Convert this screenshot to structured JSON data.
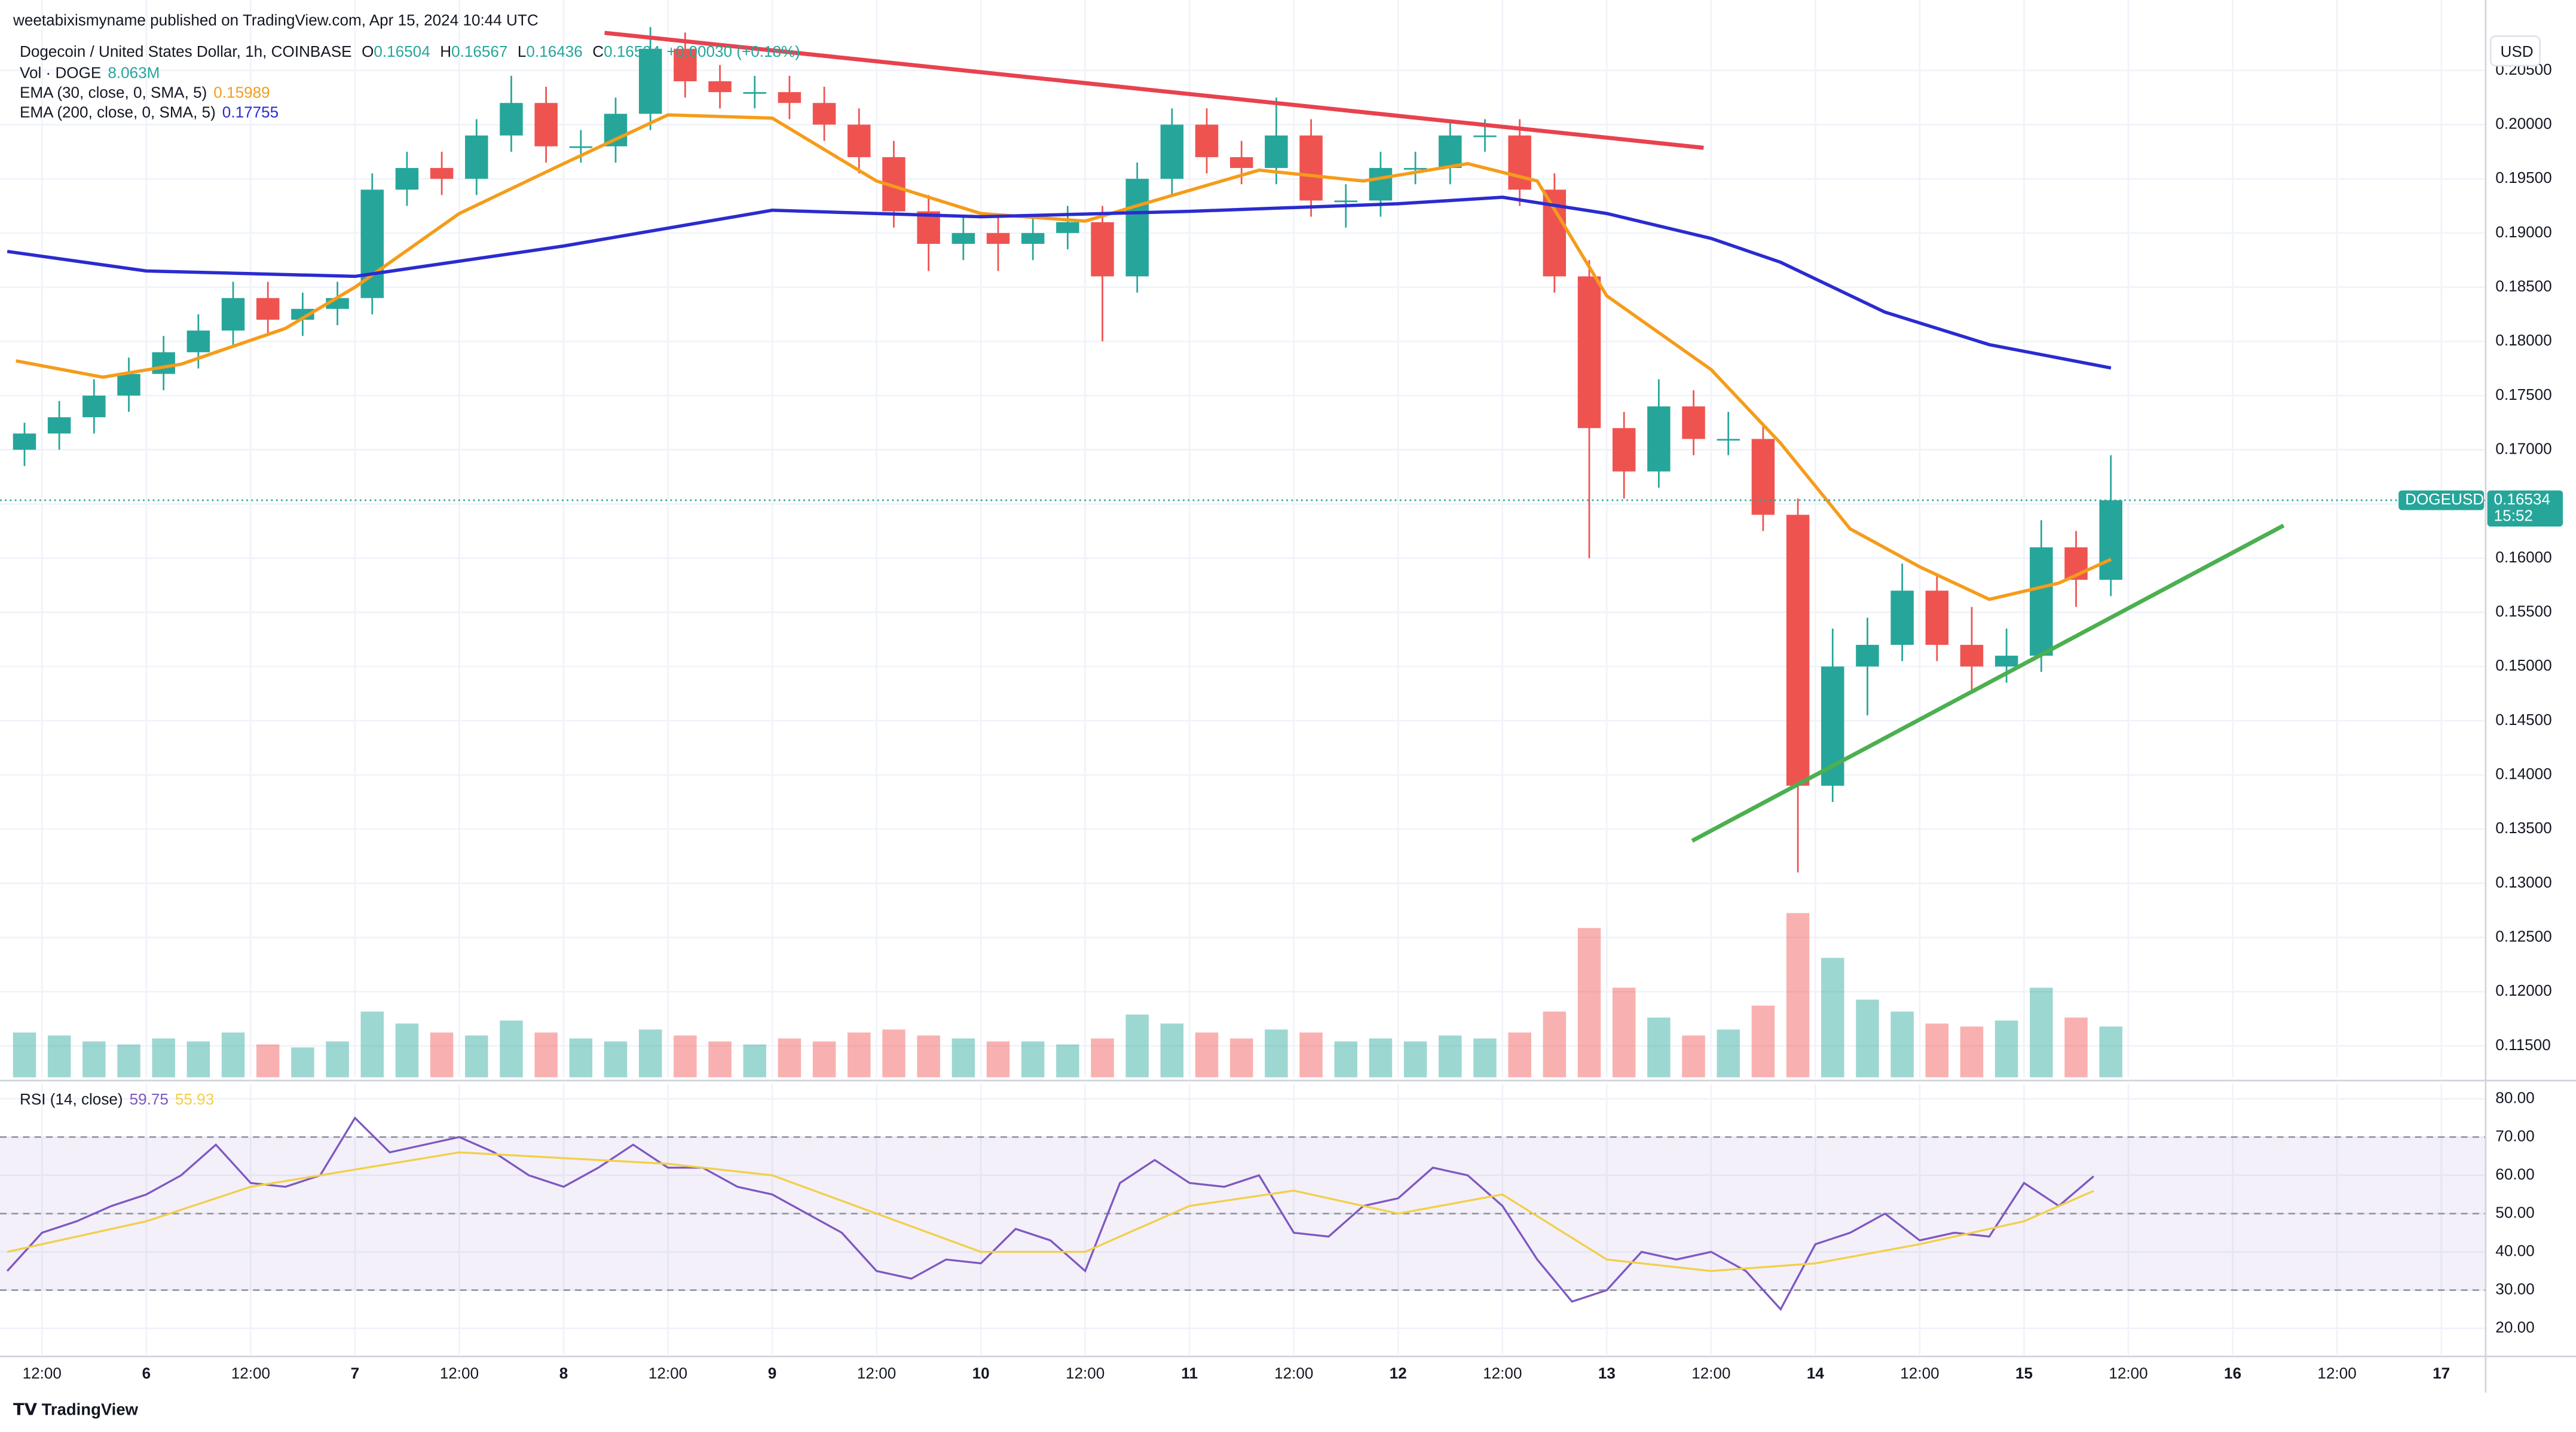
{
  "header": "weetabixismyname published on TradingView.com, Apr 15, 2024 10:44 UTC",
  "footer": "TradingView",
  "chart_data": [
    {
      "type": "candlestick",
      "title": "Dogecoin / United States Dollar, 1h, COINBASE",
      "ohlc": [
        {
          "label": "O",
          "value": 0.16504
        },
        {
          "label": "H",
          "value": 0.16567
        },
        {
          "label": "L",
          "value": 0.16436
        },
        {
          "label": "C",
          "value": 0.16534
        }
      ],
      "change": "+0.00030 (+0.18%)",
      "volume_title": "Vol · DOGE",
      "volume_last": "8.063M",
      "x": [
        "Apr 5 08:00",
        "Apr 5 12:00",
        "Apr 5 16:00",
        "Apr 5 20:00",
        "Apr 6 00:00",
        "Apr 6 04:00",
        "Apr 6 08:00",
        "Apr 6 12:00",
        "Apr 6 16:00",
        "Apr 6 20:00",
        "Apr 7 00:00",
        "Apr 7 04:00",
        "Apr 7 08:00",
        "Apr 7 12:00",
        "Apr 7 16:00",
        "Apr 7 20:00",
        "Apr 8 00:00",
        "Apr 8 04:00",
        "Apr 8 08:00",
        "Apr 8 12:00",
        "Apr 8 16:00",
        "Apr 8 20:00",
        "Apr 9 00:00",
        "Apr 9 04:00",
        "Apr 9 08:00",
        "Apr 9 12:00",
        "Apr 9 16:00",
        "Apr 9 20:00",
        "Apr 10 00:00",
        "Apr 10 04:00",
        "Apr 10 08:00",
        "Apr 10 12:00",
        "Apr 10 16:00",
        "Apr 10 20:00",
        "Apr 11 00:00",
        "Apr 11 04:00",
        "Apr 11 08:00",
        "Apr 11 12:00",
        "Apr 11 16:00",
        "Apr 11 20:00",
        "Apr 12 00:00",
        "Apr 12 04:00",
        "Apr 12 08:00",
        "Apr 12 12:00",
        "Apr 12 16:00",
        "Apr 12 20:00",
        "Apr 13 00:00",
        "Apr 13 04:00",
        "Apr 13 08:00",
        "Apr 13 12:00",
        "Apr 13 16:00",
        "Apr 13 20:00",
        "Apr 14 00:00",
        "Apr 14 04:00",
        "Apr 14 08:00",
        "Apr 14 12:00",
        "Apr 14 16:00",
        "Apr 14 20:00",
        "Apr 15 00:00",
        "Apr 15 04:00",
        "Apr 15 08:00"
      ],
      "open": [
        0.17,
        0.1715,
        0.173,
        0.175,
        0.177,
        0.179,
        0.181,
        0.184,
        0.182,
        0.183,
        0.184,
        0.194,
        0.196,
        0.195,
        0.199,
        0.202,
        0.198,
        0.198,
        0.201,
        0.207,
        0.204,
        0.203,
        0.203,
        0.202,
        0.2,
        0.197,
        0.192,
        0.189,
        0.19,
        0.189,
        0.19,
        0.191,
        0.186,
        0.195,
        0.2,
        0.197,
        0.196,
        0.199,
        0.193,
        0.193,
        0.196,
        0.196,
        0.199,
        0.199,
        0.194,
        0.186,
        0.172,
        0.168,
        0.174,
        0.171,
        0.171,
        0.164,
        0.139,
        0.15,
        0.152,
        0.157,
        0.152,
        0.15,
        0.151,
        0.161,
        0.158
      ],
      "high": [
        0.1725,
        0.1745,
        0.1765,
        0.1785,
        0.1805,
        0.1825,
        0.1855,
        0.1855,
        0.1845,
        0.1855,
        0.1955,
        0.1975,
        0.1975,
        0.2005,
        0.2045,
        0.2035,
        0.1995,
        0.2025,
        0.209,
        0.2085,
        0.2055,
        0.2045,
        0.2045,
        0.2035,
        0.2015,
        0.1985,
        0.1935,
        0.1915,
        0.1915,
        0.1915,
        0.1925,
        0.1925,
        0.1965,
        0.2015,
        0.2015,
        0.1985,
        0.2025,
        0.2005,
        0.1945,
        0.1975,
        0.1975,
        0.2005,
        0.2005,
        0.2005,
        0.1955,
        0.1875,
        0.1735,
        0.1765,
        0.1755,
        0.1735,
        0.1725,
        0.1655,
        0.1535,
        0.1545,
        0.1595,
        0.1585,
        0.1555,
        0.1535,
        0.1635,
        0.1625,
        0.1695
      ],
      "low": [
        0.1685,
        0.17,
        0.1715,
        0.1735,
        0.1755,
        0.1775,
        0.1795,
        0.1805,
        0.1805,
        0.1815,
        0.1825,
        0.1925,
        0.1935,
        0.1935,
        0.1975,
        0.1965,
        0.1965,
        0.1965,
        0.1995,
        0.2025,
        0.2015,
        0.2015,
        0.2005,
        0.1985,
        0.1955,
        0.1905,
        0.1865,
        0.1875,
        0.1865,
        0.1875,
        0.1885,
        0.18,
        0.1845,
        0.1935,
        0.1955,
        0.1945,
        0.1945,
        0.1915,
        0.1905,
        0.1915,
        0.1945,
        0.1945,
        0.1975,
        0.1925,
        0.1845,
        0.16,
        0.1655,
        0.1665,
        0.1695,
        0.1695,
        0.1625,
        0.131,
        0.1375,
        0.1455,
        0.1505,
        0.1505,
        0.1475,
        0.1485,
        0.1495,
        0.1555,
        0.1565
      ],
      "close": [
        0.1715,
        0.173,
        0.175,
        0.177,
        0.179,
        0.181,
        0.184,
        0.182,
        0.183,
        0.184,
        0.194,
        0.196,
        0.195,
        0.199,
        0.202,
        0.198,
        0.198,
        0.201,
        0.207,
        0.204,
        0.203,
        0.203,
        0.202,
        0.2,
        0.197,
        0.192,
        0.189,
        0.19,
        0.189,
        0.19,
        0.191,
        0.186,
        0.195,
        0.2,
        0.197,
        0.196,
        0.199,
        0.193,
        0.193,
        0.196,
        0.196,
        0.199,
        0.199,
        0.194,
        0.186,
        0.172,
        0.168,
        0.174,
        0.171,
        0.171,
        0.164,
        0.139,
        0.15,
        0.152,
        0.157,
        0.152,
        0.15,
        0.151,
        0.161,
        0.158,
        0.16534
      ],
      "volume": [
        150,
        140,
        120,
        110,
        130,
        120,
        150,
        110,
        100,
        120,
        220,
        180,
        150,
        140,
        190,
        150,
        130,
        120,
        160,
        140,
        120,
        110,
        130,
        120,
        150,
        160,
        140,
        130,
        120,
        120,
        110,
        130,
        210,
        180,
        150,
        130,
        160,
        150,
        120,
        130,
        120,
        140,
        130,
        150,
        220,
        500,
        300,
        200,
        140,
        160,
        240,
        550,
        400,
        260,
        220,
        180,
        170,
        190,
        300,
        200,
        170
      ],
      "up_color": "#26a69a",
      "down_color": "#ef5350",
      "series": [
        {
          "name": "EMA (30, close, 0, SMA, 5)",
          "color": "#f59c1a",
          "x": [
            "Apr 5 09:00",
            "Apr 5 19:00",
            "Apr 6 04:00",
            "Apr 6 16:00",
            "Apr 7 00:00",
            "Apr 7 12:00",
            "Apr 8 00:00",
            "Apr 8 12:00",
            "Apr 9 00:00",
            "Apr 9 12:00",
            "Apr 10 00:00",
            "Apr 10 12:00",
            "Apr 10 20:00",
            "Apr 11 08:00",
            "Apr 11 20:00",
            "Apr 12 08:00",
            "Apr 12 16:00",
            "Apr 13 00:00",
            "Apr 13 12:00",
            "Apr 13 20:00",
            "Apr 14 04:00",
            "Apr 14 12:00",
            "Apr 14 20:00",
            "Apr 15 04:00",
            "Apr 15 10:00"
          ],
          "values": [
            0.1782,
            0.1767,
            0.1779,
            0.1812,
            0.185,
            0.1918,
            0.1964,
            0.2009,
            0.2006,
            0.1948,
            0.1918,
            0.1911,
            0.193,
            0.1958,
            0.1948,
            0.1964,
            0.1948,
            0.1842,
            0.1774,
            0.1706,
            0.1627,
            0.1592,
            0.1562,
            0.1577,
            0.15989
          ]
        },
        {
          "name": "EMA (200, close, 0, SMA, 5)",
          "color": "#2b2bd0",
          "x": [
            "Apr 5 08:00",
            "Apr 6 00:00",
            "Apr 7 00:00",
            "Apr 8 00:00",
            "Apr 9 00:00",
            "Apr 10 00:00",
            "Apr 11 00:00",
            "Apr 12 00:00",
            "Apr 12 12:00",
            "Apr 13 00:00",
            "Apr 13 12:00",
            "Apr 13 20:00",
            "Apr 14 08:00",
            "Apr 14 20:00",
            "Apr 15 10:00"
          ],
          "values": [
            0.1883,
            0.1865,
            0.186,
            0.1888,
            0.1921,
            0.1915,
            0.192,
            0.1927,
            0.1933,
            0.1918,
            0.1895,
            0.1873,
            0.1827,
            0.1797,
            0.17755
          ]
        }
      ],
      "xlim": [
        "Apr 5 07:10",
        "Apr 17 05:06"
      ],
      "ylim": [
        0.1121,
        0.2115
      ],
      "yticks": [
        {
          "value": 0.115,
          "label": "0.11500"
        },
        {
          "value": 0.12,
          "label": "0.12000"
        },
        {
          "value": 0.125,
          "label": "0.12500"
        },
        {
          "value": 0.13,
          "label": "0.13000"
        },
        {
          "value": 0.135,
          "label": "0.13500"
        },
        {
          "value": 0.14,
          "label": "0.14000"
        },
        {
          "value": 0.145,
          "label": "0.14500"
        },
        {
          "value": 0.15,
          "label": "0.15000"
        },
        {
          "value": 0.155,
          "label": "0.15500"
        },
        {
          "value": 0.16,
          "label": "0.16000"
        },
        {
          "value": 0.165,
          "label": "0.16500"
        },
        {
          "value": 0.17,
          "label": "0.17000"
        },
        {
          "value": 0.175,
          "label": "0.17500"
        },
        {
          "value": 0.18,
          "label": "0.18000"
        },
        {
          "value": 0.185,
          "label": "0.18500"
        },
        {
          "value": 0.19,
          "label": "0.19000"
        },
        {
          "value": 0.195,
          "label": "0.19500"
        },
        {
          "value": 0.2,
          "label": "0.20000"
        },
        {
          "value": 0.205,
          "label": "0.20500"
        }
      ],
      "currency": "USD",
      "last_price": {
        "symbol": "DOGEUSD",
        "countdown": "15:52",
        "color": "#26a69a"
      },
      "grid": true
    },
    {
      "type": "line",
      "title": "RSI (14, close)",
      "x": [
        "Apr 5 08:00",
        "Apr 5 12:00",
        "Apr 5 16:00",
        "Apr 5 20:00",
        "Apr 6 00:00",
        "Apr 6 04:00",
        "Apr 6 08:00",
        "Apr 6 12:00",
        "Apr 6 16:00",
        "Apr 6 20:00",
        "Apr 7 00:00",
        "Apr 7 04:00",
        "Apr 7 08:00",
        "Apr 7 12:00",
        "Apr 7 16:00",
        "Apr 7 20:00",
        "Apr 8 00:00",
        "Apr 8 04:00",
        "Apr 8 08:00",
        "Apr 8 12:00",
        "Apr 8 16:00",
        "Apr 8 20:00",
        "Apr 9 00:00",
        "Apr 9 04:00",
        "Apr 9 08:00",
        "Apr 9 12:00",
        "Apr 9 16:00",
        "Apr 9 20:00",
        "Apr 10 00:00",
        "Apr 10 04:00",
        "Apr 10 08:00",
        "Apr 10 12:00",
        "Apr 10 16:00",
        "Apr 10 20:00",
        "Apr 11 00:00",
        "Apr 11 04:00",
        "Apr 11 08:00",
        "Apr 11 12:00",
        "Apr 11 16:00",
        "Apr 11 20:00",
        "Apr 12 00:00",
        "Apr 12 04:00",
        "Apr 12 08:00",
        "Apr 12 12:00",
        "Apr 12 16:00",
        "Apr 12 20:00",
        "Apr 13 00:00",
        "Apr 13 04:00",
        "Apr 13 08:00",
        "Apr 13 12:00",
        "Apr 13 16:00",
        "Apr 13 20:00",
        "Apr 14 00:00",
        "Apr 14 04:00",
        "Apr 14 08:00",
        "Apr 14 12:00",
        "Apr 14 16:00",
        "Apr 14 20:00",
        "Apr 15 00:00",
        "Apr 15 04:00",
        "Apr 15 08:00"
      ],
      "series": [
        {
          "color": "#7e57c2",
          "values": [
            35,
            45,
            48,
            52,
            55,
            60,
            68,
            58,
            57,
            60,
            75,
            66,
            68,
            70,
            66,
            60,
            57,
            62,
            68,
            62,
            62,
            57,
            55,
            50,
            45,
            35,
            33,
            38,
            37,
            46,
            43,
            35,
            58,
            64,
            58,
            57,
            60,
            45,
            44,
            52,
            54,
            62,
            60,
            52,
            38,
            27,
            30,
            40,
            38,
            40,
            35,
            25,
            42,
            45,
            50,
            43,
            45,
            44,
            58,
            52,
            59.75
          ]
        },
        {
          "color": "#f2cf4a",
          "x": [
            "Apr 5 08:00",
            "Apr 6 00:00",
            "Apr 6 12:00",
            "Apr 7 12:00",
            "Apr 8 12:00",
            "Apr 9 00:00",
            "Apr 9 12:00",
            "Apr 10 00:00",
            "Apr 10 12:00",
            "Apr 11 00:00",
            "Apr 11 12:00",
            "Apr 12 00:00",
            "Apr 12 12:00",
            "Apr 13 00:00",
            "Apr 13 12:00",
            "Apr 14 00:00",
            "Apr 14 12:00",
            "Apr 15 00:00",
            "Apr 15 08:00"
          ],
          "values": [
            40,
            48,
            57,
            66,
            63,
            60,
            50,
            40,
            40,
            52,
            56,
            50,
            55,
            38,
            35,
            37,
            42,
            48,
            55.93
          ]
        }
      ],
      "levels": [
        70,
        50,
        30
      ],
      "band_color": "#7e57c2",
      "xlim": [
        "Apr 5 07:10",
        "Apr 17 05:06"
      ],
      "ylim": [
        13.1,
        83.9
      ],
      "yticks": [
        {
          "value": 20,
          "label": "20.00"
        },
        {
          "value": 30,
          "label": "30.00"
        },
        {
          "value": 40,
          "label": "40.00"
        },
        {
          "value": 50,
          "label": "50.00"
        },
        {
          "value": 60,
          "label": "60.00"
        },
        {
          "value": 70,
          "label": "70.00"
        },
        {
          "value": 80,
          "label": "80.00"
        }
      ],
      "xticks": [
        {
          "value": "Apr 5 12:00",
          "label": "12:00"
        },
        {
          "value": "Apr 6 00:00",
          "label": "6"
        },
        {
          "value": "Apr 6 12:00",
          "label": "12:00"
        },
        {
          "value": "Apr 7 00:00",
          "label": "7"
        },
        {
          "value": "Apr 7 12:00",
          "label": "12:00"
        },
        {
          "value": "Apr 8 00:00",
          "label": "8"
        },
        {
          "value": "Apr 8 12:00",
          "label": "12:00"
        },
        {
          "value": "Apr 9 00:00",
          "label": "9"
        },
        {
          "value": "Apr 9 12:00",
          "label": "12:00"
        },
        {
          "value": "Apr 10 00:00",
          "label": "10"
        },
        {
          "value": "Apr 10 12:00",
          "label": "12:00"
        },
        {
          "value": "Apr 11 00:00",
          "label": "11"
        },
        {
          "value": "Apr 11 12:00",
          "label": "12:00"
        },
        {
          "value": "Apr 12 00:00",
          "label": "12"
        },
        {
          "value": "Apr 12 12:00",
          "label": "12:00"
        },
        {
          "value": "Apr 13 00:00",
          "label": "13"
        },
        {
          "value": "Apr 13 12:00",
          "label": "12:00"
        },
        {
          "value": "Apr 14 00:00",
          "label": "14"
        },
        {
          "value": "Apr 14 12:00",
          "label": "12:00"
        },
        {
          "value": "Apr 15 00:00",
          "label": "15"
        },
        {
          "value": "Apr 15 12:00",
          "label": "12:00"
        },
        {
          "value": "Apr 16 00:00",
          "label": "16"
        },
        {
          "value": "Apr 16 12:00",
          "label": "12:00"
        },
        {
          "value": "Apr 17 00:00",
          "label": "17"
        }
      ],
      "grid": true
    }
  ]
}
